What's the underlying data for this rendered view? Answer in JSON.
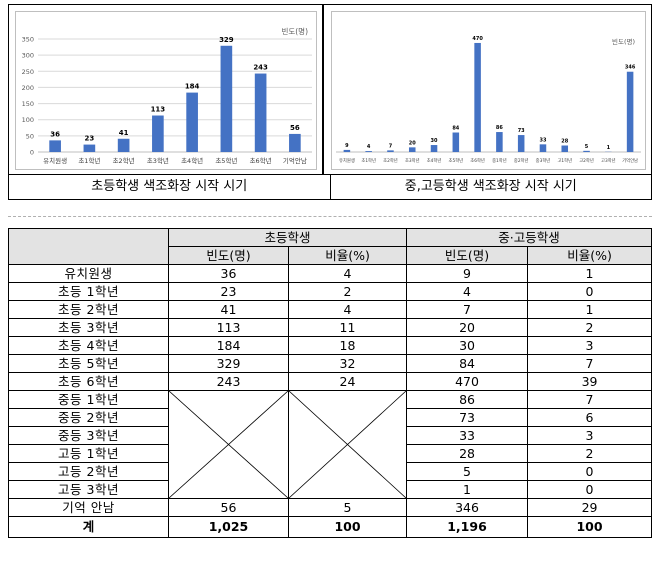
{
  "chart_data": [
    {
      "type": "bar",
      "ylabel": "빈도(명)",
      "categories": [
        "유치원생",
        "초1학년",
        "초2학년",
        "초3학년",
        "초4학년",
        "초5학년",
        "초6학년",
        "기억안남"
      ],
      "values": [
        36,
        23,
        41,
        113,
        184,
        329,
        243,
        56
      ],
      "yticks": [
        "0",
        "50",
        "100",
        "150",
        "200",
        "250",
        "300",
        "350"
      ],
      "ylim": [
        0,
        350
      ],
      "grid": true,
      "color": "#4472c4"
    },
    {
      "type": "bar",
      "ylabel": "빈도(명)",
      "categories": [
        "유치원생",
        "초1학년",
        "초2학년",
        "초3학년",
        "초4학년",
        "초5학년",
        "초6학년",
        "중1학년",
        "중2학년",
        "중3학년",
        "고1학년",
        "고2학년",
        "고3학년",
        "기억안남"
      ],
      "values": [
        9,
        4,
        7,
        20,
        30,
        84,
        470,
        86,
        73,
        33,
        28,
        5,
        1,
        346
      ],
      "ylim": [
        0,
        500
      ],
      "color": "#4472c4"
    }
  ],
  "captions": [
    "초등학생 색조화장 시작 시기",
    "중,고등학생 색조화장 시작 시기"
  ],
  "table": {
    "group_headers": [
      "초등학생",
      "중·고등학생"
    ],
    "sub_headers": [
      "빈도(명)",
      "비율(%)",
      "빈도(명)",
      "비율(%)"
    ],
    "rows": [
      {
        "label": "유치원생",
        "e_freq": "36",
        "e_pct": "4",
        "m_freq": "9",
        "m_pct": "1"
      },
      {
        "label": "초등 1학년",
        "e_freq": "23",
        "e_pct": "2",
        "m_freq": "4",
        "m_pct": "0"
      },
      {
        "label": "초등 2학년",
        "e_freq": "41",
        "e_pct": "4",
        "m_freq": "7",
        "m_pct": "1"
      },
      {
        "label": "초등 3학년",
        "e_freq": "113",
        "e_pct": "11",
        "m_freq": "20",
        "m_pct": "2"
      },
      {
        "label": "초등 4학년",
        "e_freq": "184",
        "e_pct": "18",
        "m_freq": "30",
        "m_pct": "3"
      },
      {
        "label": "초등 5학년",
        "e_freq": "329",
        "e_pct": "32",
        "m_freq": "84",
        "m_pct": "7"
      },
      {
        "label": "초등 6학년",
        "e_freq": "243",
        "e_pct": "24",
        "m_freq": "470",
        "m_pct": "39"
      },
      {
        "label": "중등 1학년",
        "m_freq": "86",
        "m_pct": "7"
      },
      {
        "label": "중등 2학년",
        "m_freq": "73",
        "m_pct": "6"
      },
      {
        "label": "중등 3학년",
        "m_freq": "33",
        "m_pct": "3"
      },
      {
        "label": "고등 1학년",
        "m_freq": "28",
        "m_pct": "2"
      },
      {
        "label": "고등 2학년",
        "m_freq": "5",
        "m_pct": "0"
      },
      {
        "label": "고등 3학년",
        "m_freq": "1",
        "m_pct": "0"
      },
      {
        "label": "기억 안남",
        "e_freq": "56",
        "e_pct": "5",
        "m_freq": "346",
        "m_pct": "29"
      }
    ],
    "total": {
      "label": "계",
      "e_freq": "1,025",
      "e_pct": "100",
      "m_freq": "1,196",
      "m_pct": "100"
    }
  }
}
